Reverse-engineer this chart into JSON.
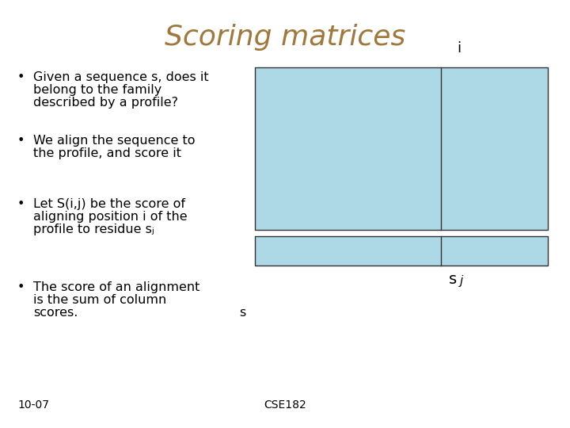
{
  "title": "Scoring matrices",
  "title_color": "#A0783C",
  "title_fontsize": 26,
  "background_color": "#ffffff",
  "bullet_points": [
    [
      "Given a sequence s, does it",
      "belong to the family",
      "described by a profile?"
    ],
    [
      "We align the sequence to",
      "the profile, and score it"
    ],
    [
      "Let S(i,j) be the score of",
      "aligning position i of the",
      "profile to residue sⱼ"
    ],
    [
      "The score of an alignment",
      "is the sum of column",
      "scores."
    ]
  ],
  "text_color": "#000000",
  "rect_fill": "#ADD8E6",
  "rect_edge": "#333333",
  "footer_left": "10-07",
  "footer_right": "CSE182",
  "footer_fontsize": 10,
  "body_fontsize": 11.5,
  "label_fontsize": 13
}
